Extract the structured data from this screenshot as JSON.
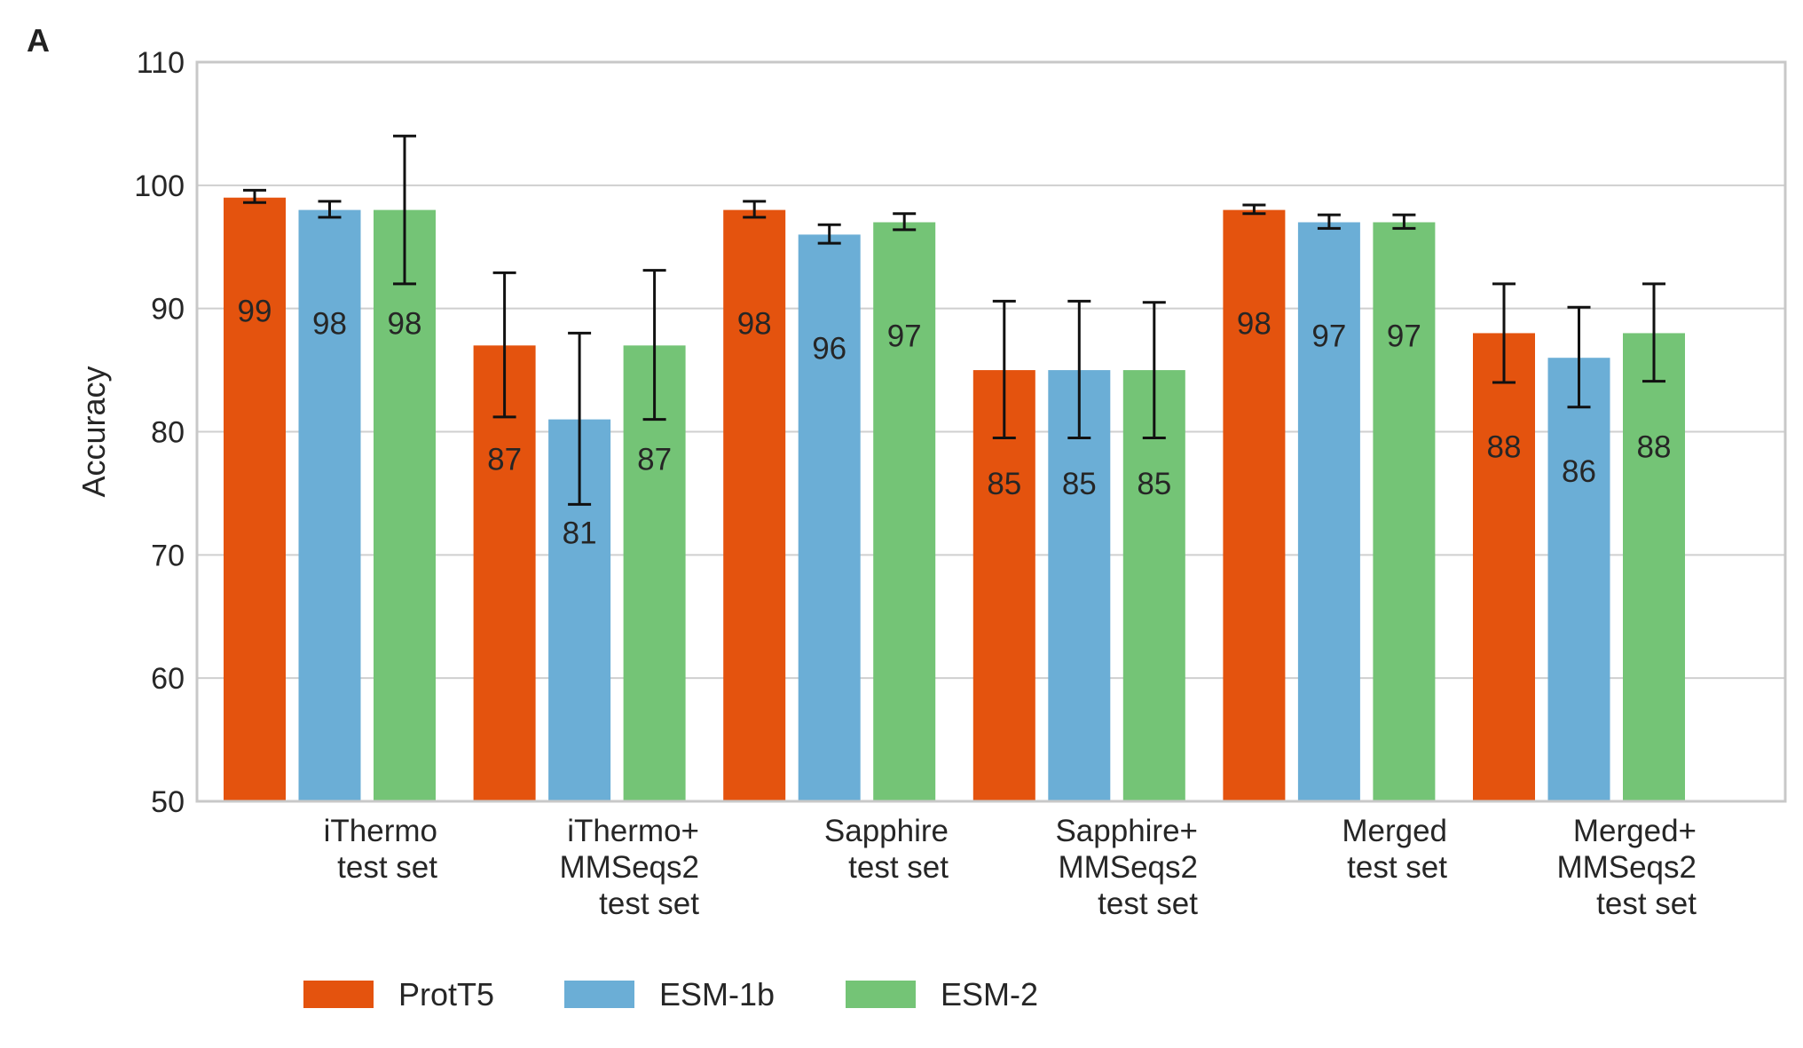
{
  "panel_label": "A",
  "chart_data": {
    "type": "bar",
    "ylabel": "Accuracy",
    "xlabel": "",
    "ylim": [
      50,
      110
    ],
    "yticks": [
      50,
      60,
      70,
      80,
      90,
      100,
      110
    ],
    "grid": true,
    "legend_position": "bottom-left",
    "categories": [
      [
        "iThermo",
        "test set"
      ],
      [
        "iThermo+",
        "MMSeqs2",
        "test set"
      ],
      [
        "Sapphire",
        "test set"
      ],
      [
        "Sapphire+",
        "MMSeqs2",
        "test set"
      ],
      [
        "Merged",
        "test set"
      ],
      [
        "Merged+",
        "MMSeqs2",
        "test set"
      ]
    ],
    "series": [
      {
        "name": "ProtT5",
        "color": "#e4530e",
        "values": [
          99,
          87,
          98,
          85,
          98,
          88
        ],
        "err_low": [
          98.6,
          81.2,
          97.4,
          79.5,
          97.7,
          84.0
        ],
        "err_high": [
          99.6,
          92.9,
          98.7,
          90.6,
          98.4,
          92.0
        ]
      },
      {
        "name": "ESM-1b",
        "color": "#6baed6",
        "values": [
          98,
          81,
          96,
          85,
          97,
          86
        ],
        "err_low": [
          97.4,
          74.1,
          95.3,
          79.5,
          96.5,
          82.0
        ],
        "err_high": [
          98.7,
          88.0,
          96.8,
          90.6,
          97.6,
          90.1
        ]
      },
      {
        "name": "ESM-2",
        "color": "#74c476",
        "values": [
          98,
          87,
          97,
          85,
          97,
          88
        ],
        "err_low": [
          92.0,
          81.0,
          96.4,
          79.5,
          96.5,
          84.1
        ],
        "err_high": [
          104.0,
          93.1,
          97.7,
          90.5,
          97.6,
          92.0
        ]
      }
    ]
  }
}
